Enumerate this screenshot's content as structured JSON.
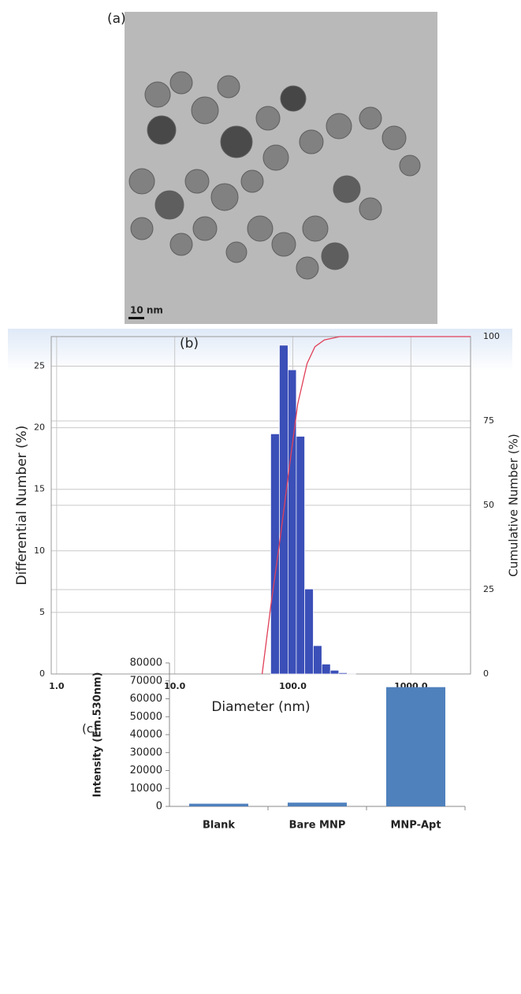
{
  "image_panel": {
    "label": "(a)",
    "scale_bar": "10 nm"
  },
  "chart_data": [
    {
      "type": "histogram",
      "label": "(b)",
      "xlabel": "Diameter (nm)",
      "ylabel": "Differential Number (%)",
      "y2label": "Cumulative Number (%)",
      "log_x": true,
      "grid": true,
      "color": "#3b4fb8",
      "bins": [
        65,
        77,
        91,
        107,
        126,
        149,
        176,
        208,
        245,
        289,
        341
      ],
      "values": [
        19.5,
        26.7,
        24.7,
        19.3,
        6.9,
        2.3,
        0.8,
        0.3,
        0.1,
        0.05
      ],
      "xlim": [
        0.9,
        3200
      ],
      "xticks": [
        {
          "value": 1,
          "label": "1.0"
        },
        {
          "value": 10,
          "label": "10.0"
        },
        {
          "value": 100,
          "label": "100.0"
        },
        {
          "value": 1000,
          "label": "1000.0"
        }
      ],
      "ylim": [
        0,
        27.4
      ],
      "yticks": [
        0,
        5,
        10,
        15,
        20,
        25
      ],
      "y2lim": [
        0,
        100
      ],
      "y2ticks": [
        0,
        25,
        50,
        75,
        100
      ],
      "series": [
        {
          "name": "Cumulative",
          "color": "#e0405a",
          "axis": "y2",
          "x": [
            55,
            65,
            78,
            94,
            110,
            132,
            154,
            185,
            250,
            400,
            3200
          ],
          "values": [
            0,
            20,
            40,
            62,
            80,
            92,
            97,
            99,
            100,
            100,
            100
          ]
        }
      ]
    },
    {
      "type": "bar",
      "label": "(c)",
      "ylabel": "Intensity (Em.530nm)",
      "color": "#4f81bd",
      "categories": [
        "Blank",
        "Bare MNP",
        "MNP-Apt"
      ],
      "values": [
        1500,
        2100,
        66500
      ],
      "ylim": [
        0,
        80000
      ],
      "yticks": [
        0,
        10000,
        20000,
        30000,
        40000,
        50000,
        60000,
        70000,
        80000
      ]
    }
  ]
}
